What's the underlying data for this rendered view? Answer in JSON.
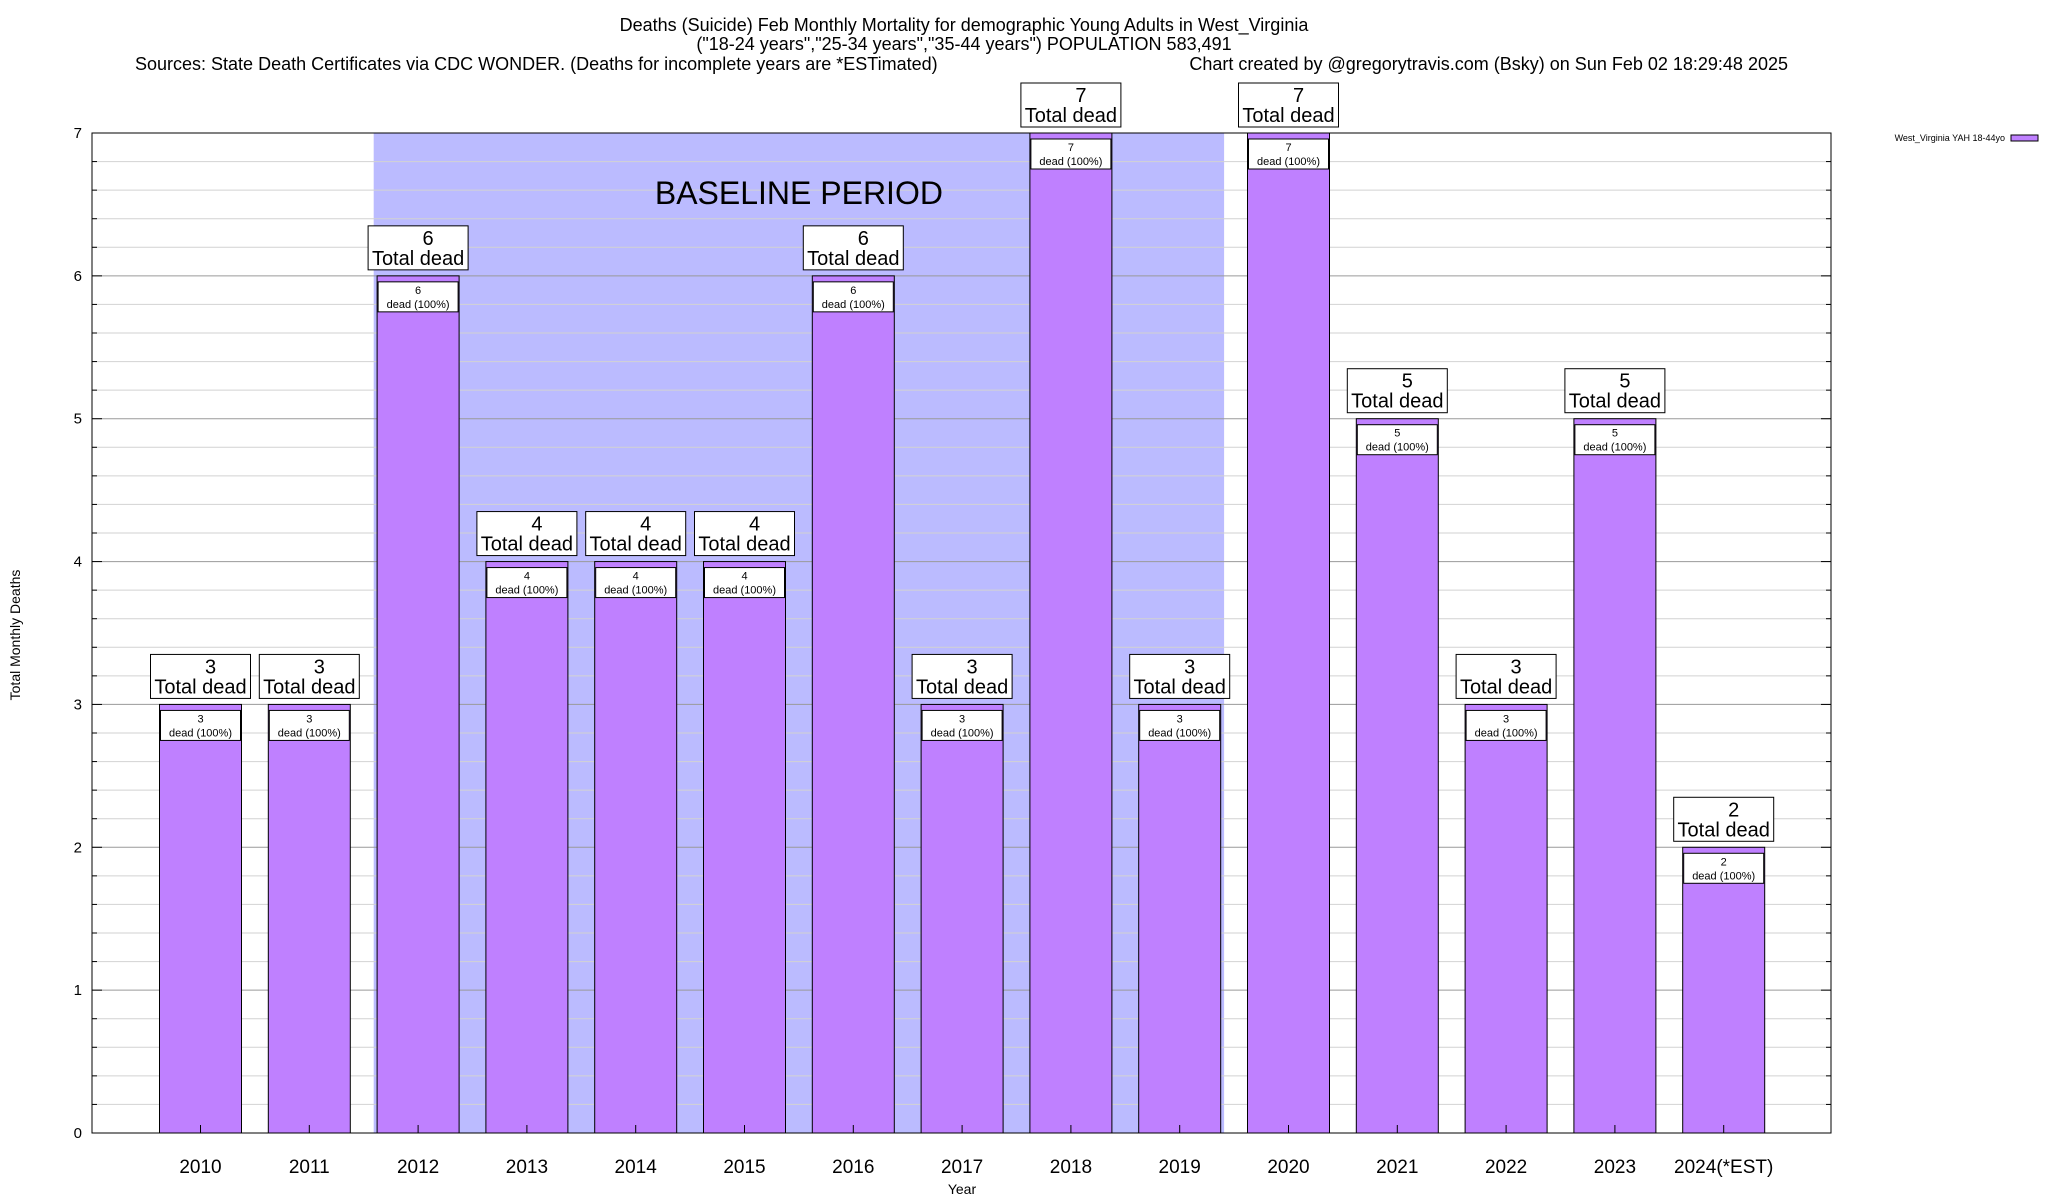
{
  "chart_data": {
    "type": "bar",
    "title_lines": [
      "Deaths (Suicide) Feb Monthly Mortality for demographic Young Adults in West_Virginia",
      "(\"18-24 years\",\"25-34 years\",\"35-44 years\") POPULATION 583,491"
    ],
    "sources": "Sources: State Death Certificates via CDC WONDER. (Deaths for incomplete years are *ESTimated)",
    "credit": "Chart created by @gregorytravis.com (Bsky) on Sun Feb 02 18:29:48 2025",
    "xlabel": "Year",
    "ylabel": "Total Monthly Deaths",
    "ylim": [
      0,
      7
    ],
    "yticks": [
      "0",
      "1",
      "2",
      "3",
      "4",
      "5",
      "6",
      "7"
    ],
    "categories": [
      "2010",
      "2011",
      "2012",
      "2013",
      "2014",
      "2015",
      "2016",
      "2017",
      "2018",
      "2019",
      "2020",
      "2021",
      "2022",
      "2023",
      "2024(*EST)"
    ],
    "series": [
      {
        "name": "West_Virginia YAH 18-44yo",
        "values": [
          3,
          3,
          6,
          4,
          4,
          4,
          6,
          3,
          7,
          3,
          7,
          5,
          3,
          5,
          2
        ],
        "color": "#bf80ff"
      }
    ],
    "bar_labels": [
      "3",
      "3",
      "6",
      "4",
      "4",
      "4",
      "6",
      "3",
      "7",
      "3",
      "7",
      "5",
      "3",
      "5",
      "2"
    ],
    "bar_label_suffix": "Total dead",
    "inner_labels": [
      "dead (100%)",
      "dead (100%)",
      "dead (100%)",
      "dead (100%)",
      "dead (100%)",
      "dead (100%)",
      "dead (100%)",
      "dead (100%)",
      "dead (100%)",
      "dead (100%)",
      "dead (100%)",
      "dead (100%)",
      "dead (100%)",
      "dead (100%)",
      "dead (100%)"
    ],
    "baseline": {
      "label": "BASELINE PERIOD",
      "from": "2012",
      "to": "2019",
      "color": "#bbbbff"
    },
    "grid": true,
    "legend_position": "top-right"
  }
}
